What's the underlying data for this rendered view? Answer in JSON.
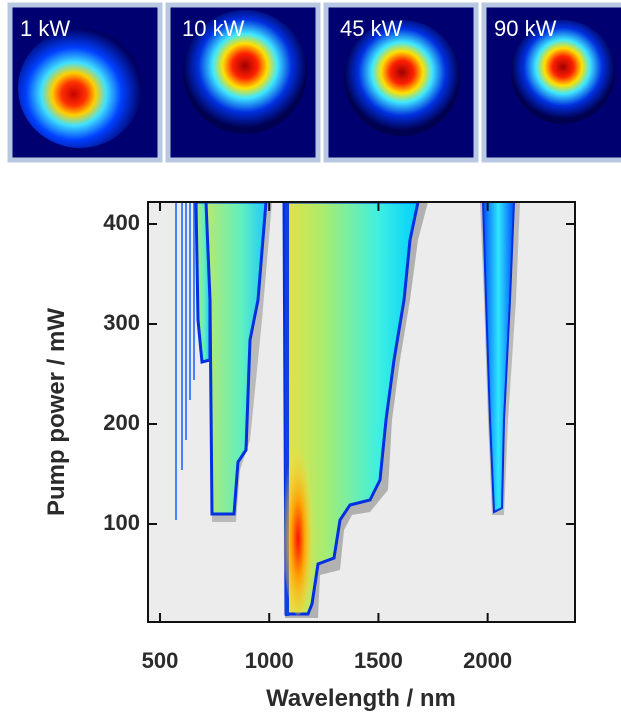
{
  "panels": [
    {
      "label": "1 kW"
    },
    {
      "label": "10 kW"
    },
    {
      "label": "45 kW"
    },
    {
      "label": "90 kW"
    }
  ],
  "chart_data": {
    "type": "heatmap",
    "xlabel": "Wavelength / nm",
    "ylabel": "Pump power / mW",
    "xlim": [
      445,
      2400
    ],
    "xticks": [
      500,
      1000,
      1500,
      2000
    ],
    "ylim": [
      2,
      422
    ],
    "yticks": [
      100,
      200,
      300,
      400
    ]
  }
}
